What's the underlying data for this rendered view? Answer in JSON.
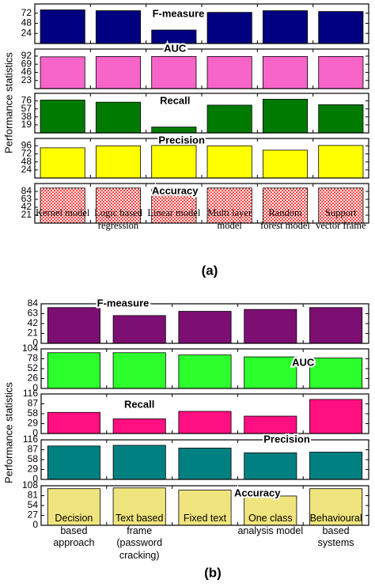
{
  "chart_data": [
    {
      "type": "bar",
      "label": "(a)",
      "ylabel": "Performance statistics",
      "categories": [
        "Kernel model",
        "Logic based regression",
        "Linear model",
        "Multi layer model",
        "Random forest model",
        "Support vector frame"
      ],
      "panels": [
        {
          "title": "F-measure",
          "color": "#000080",
          "values": [
            80,
            78,
            32,
            74,
            78,
            76
          ],
          "ylim": [
            0,
            94
          ],
          "yticks": [
            24,
            48,
            72
          ]
        },
        {
          "title": "AUC",
          "color": "#f765c9",
          "values": [
            90,
            91,
            91,
            91,
            91,
            91
          ],
          "ylim": [
            0,
            112
          ],
          "yticks": [
            23,
            46,
            69,
            92
          ]
        },
        {
          "title": "Recall",
          "color": "#007a00",
          "values": [
            78,
            73,
            14,
            66,
            80,
            67
          ],
          "ylim": [
            0,
            94
          ],
          "yticks": [
            19,
            38,
            57,
            76
          ]
        },
        {
          "title": "Precision",
          "color": "#ffff00",
          "values": [
            90,
            96,
            97,
            96,
            83,
            97
          ],
          "ylim": [
            0,
            118
          ],
          "yticks": [
            24,
            48,
            72,
            96
          ]
        },
        {
          "title": "Accuracy",
          "color": "#ff3b3b",
          "pattern": "checkered",
          "values": [
            93,
            93,
            90,
            93,
            93,
            93
          ],
          "ylim": [
            0,
            105
          ],
          "yticks": [
            21,
            42,
            63,
            84
          ]
        }
      ]
    },
    {
      "type": "bar",
      "label": "(b)",
      "ylabel": "Performance statistics",
      "categories": [
        "Decision based approach",
        "Text based frame (password cracking)",
        "Fixed text",
        "One class analysis model",
        "Behavioural based systems"
      ],
      "panels": [
        {
          "title": "F-measure",
          "color": "#7d0f73",
          "values": [
            76,
            59,
            68,
            72,
            76
          ],
          "ylim": [
            0,
            84
          ],
          "yticks": [
            0,
            21,
            42,
            63,
            84
          ]
        },
        {
          "title": "AUC",
          "color": "#2cff2c",
          "values": [
            94,
            94,
            88,
            83,
            80
          ],
          "ylim": [
            0,
            104
          ],
          "yticks": [
            0,
            26,
            52,
            78,
            104
          ]
        },
        {
          "title": "Recall",
          "color": "#ff0f7f",
          "values": [
            62,
            43,
            65,
            51,
            100
          ],
          "ylim": [
            0,
            116
          ],
          "yticks": [
            0,
            29,
            58,
            87,
            116
          ]
        },
        {
          "title": "Precision",
          "color": "#008080",
          "values": [
            98,
            100,
            92,
            78,
            80
          ],
          "ylim": [
            0,
            116
          ],
          "yticks": [
            0,
            29,
            58,
            87,
            116
          ]
        },
        {
          "title": "Accuracy",
          "color": "#f0e47e",
          "values": [
            100,
            102,
            96,
            80,
            100
          ],
          "ylim": [
            0,
            108
          ],
          "yticks": [
            0,
            27,
            54,
            81,
            108
          ]
        }
      ]
    }
  ]
}
